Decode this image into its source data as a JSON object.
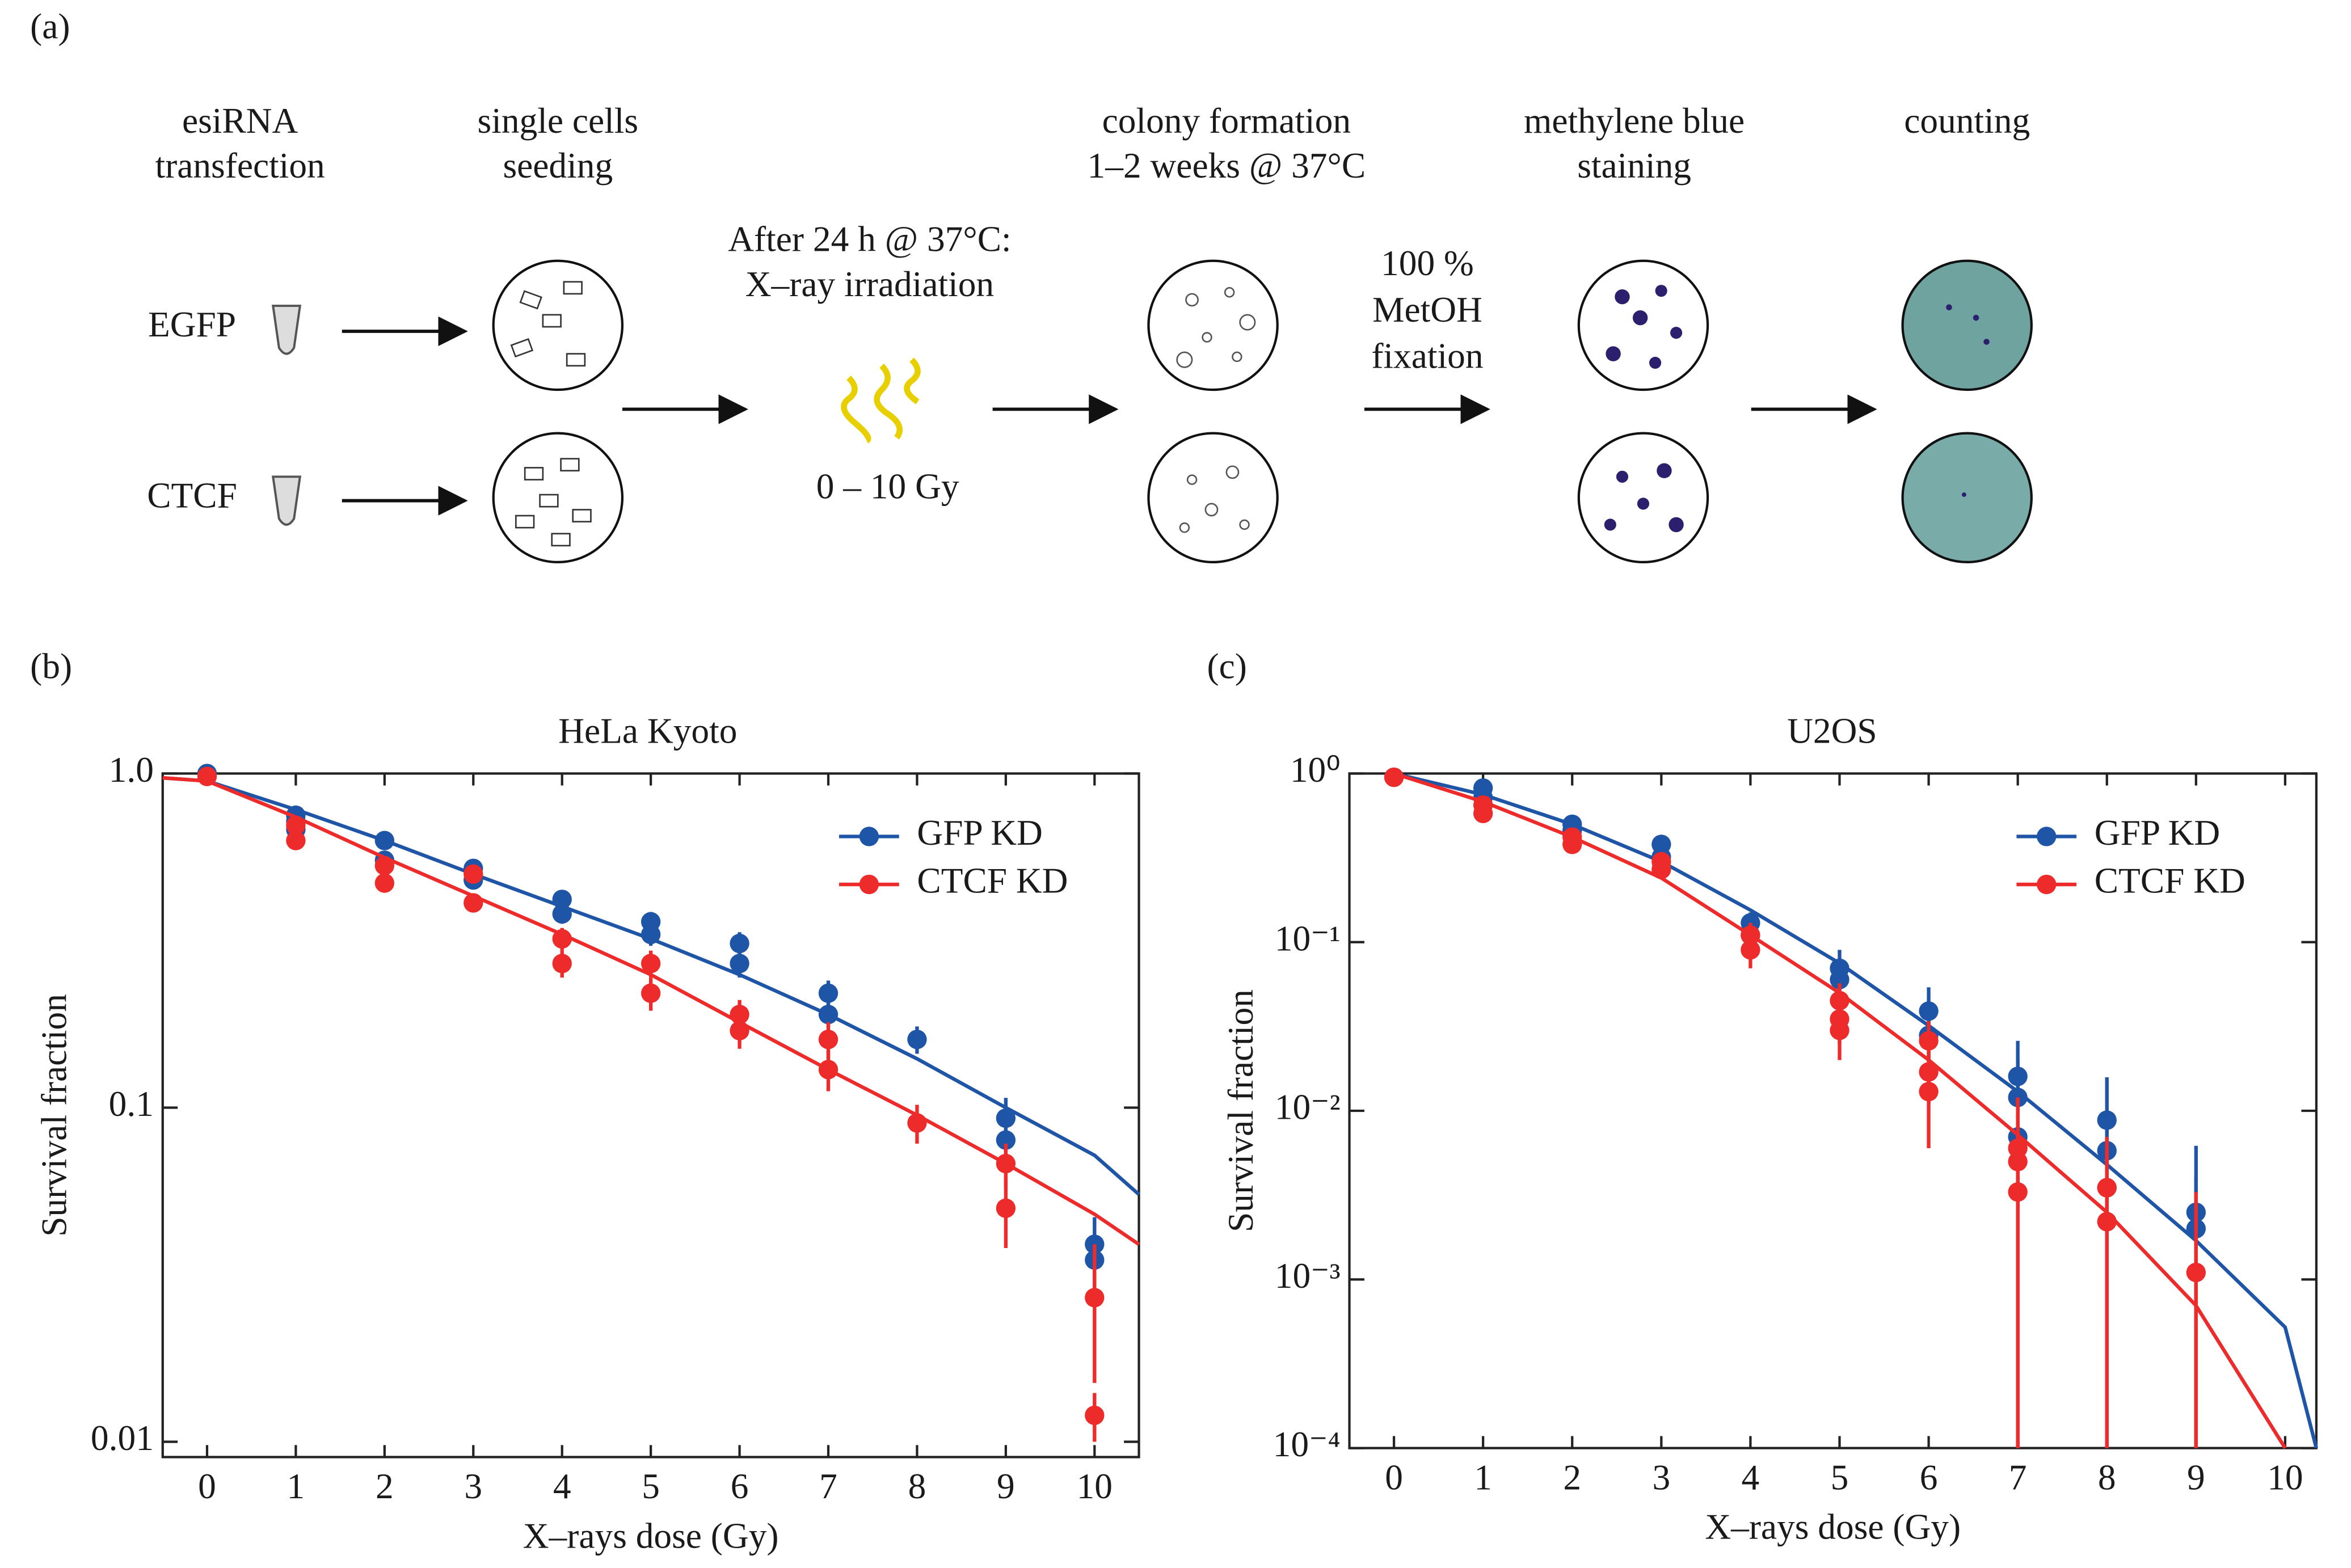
{
  "diagram": {
    "label": "(a)",
    "headers": [
      [
        "esiRNA",
        "transfection"
      ],
      [
        "single cells",
        "seeding"
      ],
      [
        "colony formation",
        "1–2 weeks @ 37°C"
      ],
      [
        "methylene blue",
        "staining"
      ],
      [
        "counting"
      ]
    ],
    "samples": [
      "EGFP",
      "CTCF"
    ],
    "irradiation": [
      "After 24 h @ 37°C:",
      "X–ray irradiation"
    ],
    "dose": "0 – 10 Gy",
    "fixation": [
      "100 %",
      "MetOH",
      "fixation"
    ]
  },
  "chart_data": [
    {
      "type": "scatter",
      "panel_label": "(b)",
      "title": "HeLa Kyoto",
      "xlabel": "X–rays dose (Gy)",
      "ylabel": "Survival fraction",
      "log_y": true,
      "legend": "upper right",
      "xlim": [
        -0.5,
        10.5
      ],
      "xticks": [
        0,
        1,
        2,
        3,
        4,
        5,
        6,
        7,
        8,
        9,
        10
      ],
      "ylim": [
        0.009,
        1.0
      ],
      "yticks": [
        0.01,
        0.1,
        {
          "value": 1,
          "label": "1.0"
        }
      ],
      "series": [
        {
          "name": "GFP KD",
          "color": "#1f55a6",
          "x": [
            0,
            1,
            1,
            1,
            2,
            2,
            3,
            3,
            4,
            4,
            5,
            5,
            6,
            6,
            7,
            7,
            8,
            9,
            9,
            10,
            10
          ],
          "values": [
            1.0,
            0.75,
            0.72,
            0.68,
            0.63,
            0.55,
            0.52,
            0.48,
            0.42,
            0.38,
            0.36,
            0.33,
            0.31,
            0.27,
            0.22,
            0.19,
            0.16,
            0.093,
            0.08,
            0.039,
            0.035
          ],
          "errors": [
            0.03,
            0.03,
            0.03,
            0.03,
            0.03,
            0.03,
            0.025,
            0.025,
            0.025,
            0.025,
            0.025,
            0.025,
            0.025,
            0.025,
            0.02,
            0.02,
            0.015,
            0.014,
            0.012,
            0.008,
            0.007
          ],
          "fit_x": [
            -0.5,
            0,
            1,
            2,
            3,
            4,
            5,
            6,
            7,
            8,
            9,
            10,
            10.5
          ],
          "fit_values": [
            0.97,
            0.95,
            0.78,
            0.63,
            0.5,
            0.4,
            0.32,
            0.25,
            0.19,
            0.14,
            0.1,
            0.072,
            0.055
          ]
        },
        {
          "name": "CTCF KD",
          "color": "#ee2b2b",
          "x": [
            0,
            1,
            1,
            2,
            2,
            3,
            3,
            4,
            4,
            5,
            5,
            6,
            6,
            7,
            7,
            8,
            9,
            9,
            10,
            10
          ],
          "values": [
            0.98,
            0.7,
            0.63,
            0.53,
            0.47,
            0.5,
            0.41,
            0.32,
            0.27,
            0.27,
            0.22,
            0.19,
            0.17,
            0.16,
            0.13,
            0.09,
            0.068,
            0.05,
            0.027,
            0.012
          ],
          "errors": [
            0.03,
            0.03,
            0.03,
            0.03,
            0.03,
            0.03,
            0.025,
            0.025,
            0.025,
            0.025,
            0.025,
            0.02,
            0.02,
            0.02,
            0.018,
            0.012,
            0.01,
            0.012,
            0.012,
            0.002
          ],
          "fit_x": [
            -0.5,
            0,
            1,
            2,
            3,
            4,
            5,
            6,
            7,
            8,
            9,
            10,
            10.5
          ],
          "fit_values": [
            0.97,
            0.95,
            0.74,
            0.56,
            0.43,
            0.33,
            0.25,
            0.18,
            0.13,
            0.095,
            0.068,
            0.048,
            0.039
          ]
        }
      ]
    },
    {
      "type": "scatter",
      "panel_label": "(c)",
      "title": "U2OS",
      "xlabel": "X–rays dose (Gy)",
      "ylabel": "Survival fraction",
      "log_y": true,
      "legend": "upper right",
      "xlim": [
        -0.5,
        10.35
      ],
      "xticks": [
        0,
        1,
        2,
        3,
        4,
        5,
        6,
        7,
        8,
        9,
        10
      ],
      "ylim": [
        0.0001,
        1
      ],
      "yticks": [
        {
          "value": 0.0001,
          "label": "10⁻⁴"
        },
        {
          "value": 0.001,
          "label": "10⁻³"
        },
        {
          "value": 0.01,
          "label": "10⁻²"
        },
        {
          "value": 0.1,
          "label": "10⁻¹"
        },
        {
          "value": 1,
          "label": "10⁰"
        }
      ],
      "series": [
        {
          "name": "GFP KD",
          "color": "#1f55a6",
          "x": [
            0,
            1,
            1,
            2,
            2,
            3,
            3,
            4,
            4,
            5,
            5,
            6,
            6,
            7,
            7,
            7,
            8,
            8,
            8,
            9,
            9
          ],
          "values": [
            0.95,
            0.82,
            0.72,
            0.5,
            0.46,
            0.38,
            0.32,
            0.13,
            0.11,
            0.07,
            0.06,
            0.039,
            0.028,
            0.016,
            0.012,
            0.007,
            0.0088,
            0.0058,
            0.0035,
            0.0025,
            0.002
          ],
          "errors": [
            0.05,
            0.08,
            0.07,
            0.05,
            0.05,
            0.05,
            0.04,
            0.02,
            0.02,
            0.02,
            0.015,
            0.015,
            0.01,
            0.01,
            0.008,
            0.005,
            0.007,
            0.004,
            0.003,
            0.0037,
            0.002
          ],
          "fit_x": [
            0,
            1,
            2,
            3,
            4,
            5,
            6,
            7,
            8,
            9,
            10,
            10.35
          ],
          "fit_values": [
            1.0,
            0.75,
            0.5,
            0.3,
            0.155,
            0.075,
            0.032,
            0.013,
            0.0048,
            0.0017,
            0.00052,
            0.0001
          ]
        },
        {
          "name": "CTCF KD",
          "color": "#ee2b2b",
          "x": [
            0,
            1,
            1,
            2,
            2,
            3,
            3,
            4,
            4,
            5,
            5,
            5,
            6,
            6,
            6,
            7,
            7,
            7,
            8,
            8,
            9
          ],
          "values": [
            0.95,
            0.65,
            0.58,
            0.42,
            0.38,
            0.3,
            0.27,
            0.11,
            0.09,
            0.045,
            0.035,
            0.03,
            0.026,
            0.017,
            0.013,
            0.006,
            0.005,
            0.0033,
            0.0035,
            0.0022,
            0.0011
          ],
          "errors": [
            0.05,
            0.06,
            0.05,
            0.04,
            0.04,
            0.03,
            0.03,
            0.02,
            0.02,
            0.012,
            0.01,
            0.01,
            0.008,
            0.006,
            0.007,
            0.006,
            0.005,
            0.004,
            0.0035,
            0.0022,
            0.0022
          ],
          "fit_x": [
            0,
            1,
            2,
            3,
            4,
            5,
            6,
            7,
            8,
            9,
            10
          ],
          "fit_values": [
            1.0,
            0.68,
            0.42,
            0.24,
            0.11,
            0.05,
            0.02,
            0.0072,
            0.0025,
            0.0007,
            0.0001
          ]
        }
      ]
    }
  ]
}
